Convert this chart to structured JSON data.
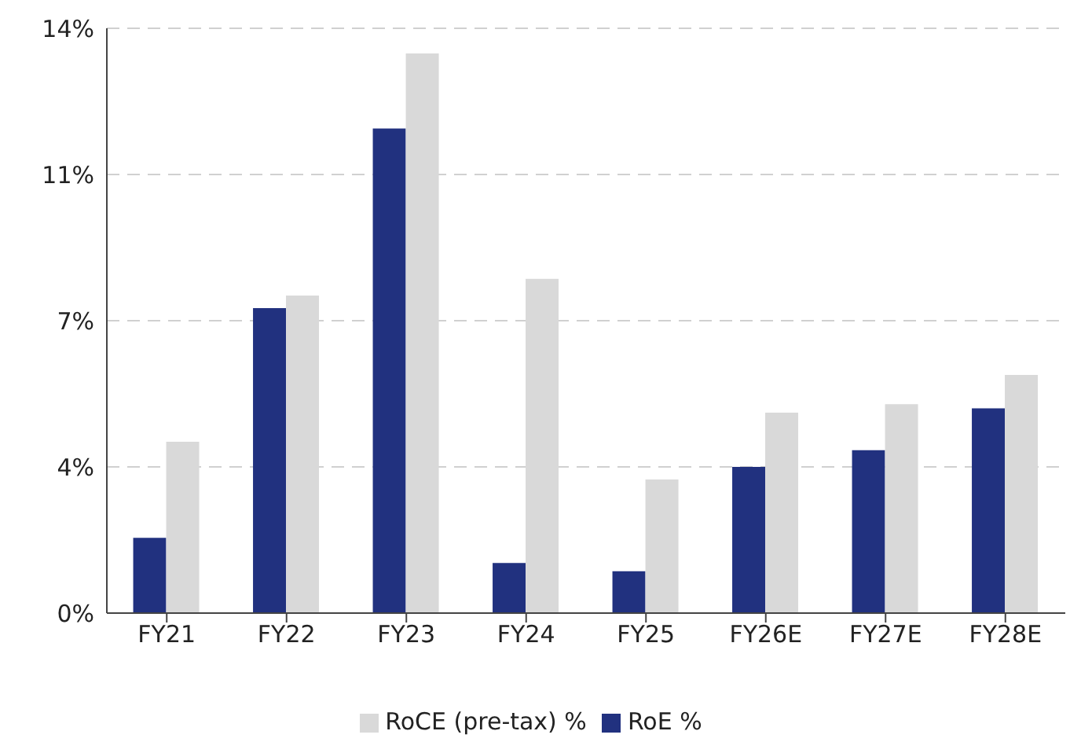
{
  "chart_data": {
    "type": "bar",
    "categories": [
      "FY21",
      "FY22",
      "FY23",
      "FY24",
      "FY25",
      "FY26E",
      "FY27E",
      "FY28E"
    ],
    "series": [
      {
        "name": "RoE %",
        "color": "#21317f",
        "values": [
          1.8,
          7.3,
          11.6,
          1.2,
          1.0,
          3.5,
          3.9,
          4.9
        ]
      },
      {
        "name": "RoCE (pre-tax) %",
        "color": "#d9d9d9",
        "values": [
          4.1,
          7.6,
          13.4,
          8.0,
          3.2,
          4.8,
          5.0,
          5.7
        ]
      }
    ],
    "ylim": [
      0,
      14
    ],
    "yticks": [
      {
        "value": 0,
        "label": "0%"
      },
      {
        "value": 3.5,
        "label": "4%"
      },
      {
        "value": 7,
        "label": "7%"
      },
      {
        "value": 10.5,
        "label": "11%"
      },
      {
        "value": 14,
        "label": "14%"
      }
    ],
    "grid": "y",
    "legend": "bottom"
  }
}
